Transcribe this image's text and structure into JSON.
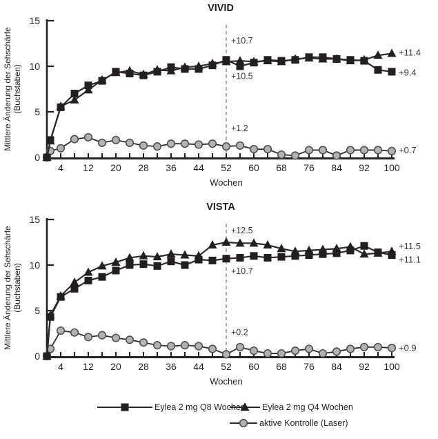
{
  "figure": {
    "panels": [
      "VIVID",
      "VISTA"
    ]
  },
  "axis": {
    "ylabel_line1": "Mittlere Änderung der Sehschärfe",
    "ylabel_line2": "(Buchstaben)",
    "xlabel": "Wochen",
    "yticks": [
      0,
      5,
      10,
      15
    ],
    "xtick_labels": [
      4,
      12,
      20,
      28,
      36,
      44,
      52,
      60,
      68,
      76,
      84,
      92,
      100
    ],
    "xtick_minor_step": 4,
    "xlim": [
      0,
      100
    ],
    "ylim": [
      0,
      15
    ]
  },
  "colors": {
    "black": "#231f20",
    "line": "#2b2b2b",
    "circle_fill": "#b2b2b2",
    "circle_stroke": "#4f4f4f",
    "dashed_line": "#8f8f8f",
    "annotation_text": "#3a3a3a",
    "background": "#ffffff"
  },
  "chart_data": [
    {
      "type": "line",
      "title": "VIVID",
      "xlabel": "Wochen",
      "ylabel": "Mittlere Änderung der Sehschärfe (Buchstaben)",
      "xlim": [
        0,
        100
      ],
      "ylim": [
        0,
        15
      ],
      "grid": false,
      "vline_week": 52,
      "x": [
        0,
        1,
        4,
        8,
        12,
        16,
        20,
        24,
        28,
        32,
        36,
        40,
        44,
        48,
        52,
        56,
        60,
        64,
        68,
        72,
        76,
        80,
        84,
        88,
        92,
        96,
        100
      ],
      "series": [
        {
          "name": "aktive Kontrolle (Laser)",
          "marker": "circle",
          "values": [
            0,
            0.7,
            1.0,
            2.0,
            2.2,
            1.6,
            1.9,
            1.6,
            1.3,
            1.2,
            1.5,
            1.5,
            1.4,
            1.5,
            1.2,
            1.3,
            0.9,
            0.9,
            0.3,
            0.2,
            0.8,
            0.8,
            0.2,
            0.8,
            0.8,
            0.8,
            0.7
          ],
          "week52": 1.2,
          "week100": 0.7
        },
        {
          "name": "Eylea 2 mg Q4 Wochen",
          "marker": "triangle",
          "values": [
            0,
            1.8,
            5.6,
            6.3,
            7.4,
            8.5,
            9.3,
            9.5,
            9.1,
            9.6,
            9.5,
            9.9,
            10.0,
            10.3,
            10.5,
            10.6,
            10.5,
            10.6,
            10.5,
            10.8,
            10.9,
            10.8,
            10.8,
            10.6,
            10.7,
            11.2,
            11.4
          ],
          "week52": 10.5,
          "week100": 11.4
        },
        {
          "name": "Eylea 2 mg Q8 Wochen",
          "marker": "square",
          "values": [
            0,
            1.9,
            5.5,
            7.0,
            7.9,
            8.4,
            9.4,
            9.2,
            9.0,
            9.4,
            9.9,
            9.7,
            9.7,
            10.1,
            10.7,
            10.0,
            10.4,
            10.7,
            10.6,
            10.7,
            11.0,
            11.0,
            10.8,
            10.7,
            10.6,
            9.6,
            9.4
          ],
          "week52": 10.7,
          "week100": 9.4
        }
      ],
      "annotations": [
        {
          "text": "+10.7",
          "week": 53,
          "y": 12.8
        },
        {
          "text": "+10.5",
          "week": 53,
          "y": 8.9
        },
        {
          "text": "+1.2",
          "week": 53,
          "y": 3.2
        }
      ],
      "end_labels": [
        {
          "text": "+11.4",
          "y": 11.5
        },
        {
          "text": "+9.4",
          "y": 9.3
        },
        {
          "text": "+0.7",
          "y": 0.8
        }
      ]
    },
    {
      "type": "line",
      "title": "VISTA",
      "xlabel": "Wochen",
      "ylabel": "Mittlere Änderung der Sehschärfe (Buchstaben)",
      "xlim": [
        0,
        100
      ],
      "ylim": [
        0,
        15
      ],
      "grid": false,
      "vline_week": 52,
      "x": [
        0,
        1,
        4,
        8,
        12,
        16,
        20,
        24,
        28,
        32,
        36,
        40,
        44,
        48,
        52,
        56,
        60,
        64,
        68,
        72,
        76,
        80,
        84,
        88,
        92,
        96,
        100
      ],
      "series": [
        {
          "name": "aktive Kontrolle (Laser)",
          "marker": "circle",
          "values": [
            0,
            0.8,
            2.8,
            2.6,
            2.1,
            2.3,
            2.0,
            1.8,
            1.5,
            1.2,
            1.1,
            1.2,
            1.1,
            0.8,
            0.2,
            1.0,
            0.6,
            0.3,
            0.3,
            0.6,
            0.8,
            0.3,
            0.5,
            0.8,
            1.0,
            1.0,
            0.9
          ],
          "week52": 0.2,
          "week100": 0.9
        },
        {
          "name": "Eylea 2 mg Q4 Wochen",
          "marker": "triangle",
          "values": [
            0,
            4.5,
            6.6,
            8.1,
            9.2,
            9.9,
            10.3,
            10.8,
            11.0,
            10.9,
            11.2,
            11.1,
            11.0,
            12.2,
            12.5,
            12.4,
            12.4,
            12.2,
            11.8,
            11.5,
            11.6,
            11.7,
            11.8,
            12.0,
            11.2,
            11.3,
            11.5
          ],
          "week52": 12.5,
          "week100": 11.5
        },
        {
          "name": "Eylea 2 mg Q8 Wochen",
          "marker": "square",
          "values": [
            0,
            4.3,
            6.5,
            7.4,
            8.3,
            8.7,
            9.4,
            10.0,
            10.1,
            9.9,
            10.4,
            10.0,
            10.6,
            10.5,
            10.7,
            10.8,
            11.0,
            10.8,
            10.9,
            11.0,
            11.1,
            11.2,
            11.3,
            11.6,
            12.1,
            11.4,
            11.1
          ],
          "week52": 10.7,
          "week100": 11.1
        }
      ],
      "annotations": [
        {
          "text": "+12.5",
          "week": 53,
          "y": 13.8
        },
        {
          "text": "+10.7",
          "week": 53,
          "y": 9.3
        },
        {
          "text": "+0.2",
          "week": 53,
          "y": 2.6
        }
      ],
      "end_labels": [
        {
          "text": "+11.5",
          "y": 12.1
        },
        {
          "text": "+11.1",
          "y": 10.6
        },
        {
          "text": "+0.9",
          "y": 0.9
        }
      ]
    }
  ],
  "legend": {
    "items": [
      {
        "label": "Eylea 2 mg Q8 Wochen",
        "marker": "square"
      },
      {
        "label": "Eylea 2 mg Q4 Wochen",
        "marker": "triangle"
      },
      {
        "label": "aktive Kontrolle (Laser)",
        "marker": "circle"
      }
    ]
  }
}
